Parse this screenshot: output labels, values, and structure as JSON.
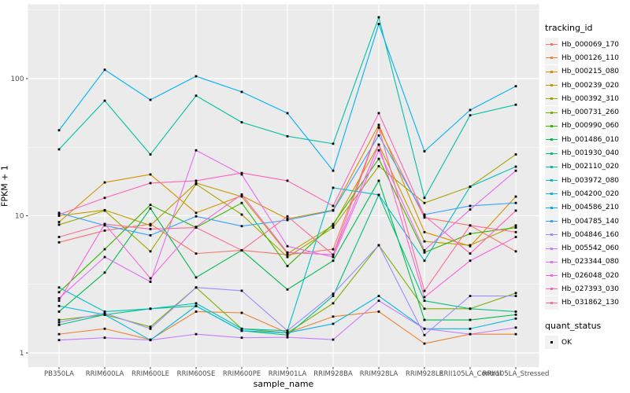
{
  "style": {
    "panel_bg": "#EBEBEB",
    "grid_color": "#FFFFFF",
    "axis_text_color": "#4D4D4D",
    "tick_mark_color": "#333333",
    "marker_color": "#000000",
    "legend_key_bg": "#F2F2F2"
  },
  "chart_data": {
    "type": "line",
    "title": "",
    "xlabel": "sample_name",
    "ylabel": "FPKM + 1",
    "y_scale": "log10",
    "y_ticks": [
      "1",
      "10",
      "100"
    ],
    "y_tick_values": [
      1,
      10,
      100
    ],
    "ylim": [
      0.8,
      330
    ],
    "grid": true,
    "legend_position": "right",
    "categories": [
      "PB350LA",
      "RRIM600LA",
      "RRIM600LE",
      "RRIM600SE",
      "RRIM600PE",
      "RRIM901LA",
      "RRIM928BA",
      "RRIM928LA",
      "RRIM928LE",
      "RRII105LA_Control",
      "RRII105LA_Stressed"
    ],
    "series": [
      {
        "name": "Hb_000069_170",
        "color": "#F8766D",
        "values": [
          6.4,
          7.8,
          8.7,
          5.3,
          5.6,
          5.2,
          5.7,
          44,
          9.7,
          8.5,
          5.5
        ]
      },
      {
        "name": "Hb_000126_110",
        "color": "#EA8331",
        "values": [
          1.37,
          1.5,
          1.25,
          2.0,
          1.96,
          1.4,
          1.84,
          2.0,
          1.17,
          1.37,
          1.37
        ]
      },
      {
        "name": "Hb_000215_080",
        "color": "#D89000",
        "values": [
          9.0,
          17.5,
          20,
          10.5,
          14,
          9.5,
          11,
          46,
          7.6,
          6.0,
          13.8
        ]
      },
      {
        "name": "Hb_000239_020",
        "color": "#C09B00",
        "values": [
          10.0,
          11,
          8.5,
          17.3,
          13.8,
          5.3,
          8.5,
          33,
          6.5,
          6.1,
          8.5
        ]
      },
      {
        "name": "Hb_000392_310",
        "color": "#A3A500",
        "values": [
          8.6,
          10.9,
          5.5,
          17.0,
          10.2,
          5.0,
          8.2,
          23,
          12.4,
          16.3,
          28
        ]
      },
      {
        "name": "Hb_000731_260",
        "color": "#7CAE00",
        "values": [
          1.74,
          1.9,
          1.55,
          3.0,
          1.5,
          1.4,
          2.3,
          6.1,
          2.1,
          2.1,
          2.73
        ]
      },
      {
        "name": "Hb_000990_060",
        "color": "#39B600",
        "values": [
          2.77,
          5.7,
          12,
          8.2,
          12.4,
          4.3,
          8.7,
          26,
          5.4,
          7.4,
          8.2
        ]
      },
      {
        "name": "Hb_001486_010",
        "color": "#00BB4E",
        "values": [
          2.0,
          3.85,
          11.3,
          3.55,
          5.6,
          2.9,
          4.7,
          18,
          1.74,
          1.74,
          1.9
        ]
      },
      {
        "name": "Hb_001930_040",
        "color": "#00BF7D",
        "values": [
          1.6,
          1.9,
          2.1,
          2.2,
          1.45,
          1.35,
          2.6,
          14.2,
          2.4,
          2.1,
          2.0
        ]
      },
      {
        "name": "Hb_002110_020",
        "color": "#00C1A3",
        "values": [
          30.5,
          69,
          28,
          75,
          48,
          38,
          33.5,
          280,
          13.5,
          54,
          64.5
        ]
      },
      {
        "name": "Hb_003972_080",
        "color": "#00BFC4",
        "values": [
          3.0,
          2.0,
          2.1,
          2.3,
          1.5,
          1.45,
          16,
          14.2,
          4.7,
          16.3,
          22.8
        ]
      },
      {
        "name": "Hb_004200_020",
        "color": "#00BAE0",
        "values": [
          2.2,
          1.9,
          1.24,
          2.2,
          1.45,
          1.4,
          1.63,
          2.6,
          1.5,
          1.5,
          1.78
        ]
      },
      {
        "name": "Hb_004586_210",
        "color": "#00B0F6",
        "values": [
          42,
          116,
          70,
          104,
          80,
          56,
          21.3,
          250,
          29.5,
          59,
          88
        ]
      },
      {
        "name": "Hb_004785_140",
        "color": "#35A2FF",
        "values": [
          10.5,
          8.5,
          7.2,
          9.9,
          8.4,
          9.3,
          10.9,
          38.5,
          10.2,
          11.8,
          12.4
        ]
      },
      {
        "name": "Hb_004846_160",
        "color": "#9590FF",
        "values": [
          1.67,
          1.95,
          1.5,
          3.0,
          2.84,
          1.45,
          2.7,
          6.1,
          1.35,
          2.6,
          2.6
        ]
      },
      {
        "name": "Hb_005542_060",
        "color": "#C77CFF",
        "values": [
          1.24,
          1.29,
          1.24,
          1.37,
          1.29,
          1.3,
          1.25,
          2.4,
          1.5,
          1.37,
          1.53
        ]
      },
      {
        "name": "Hb_023344_080",
        "color": "#E76BF3",
        "values": [
          2.5,
          5.0,
          3.3,
          30,
          20,
          6.0,
          5.0,
          30,
          5.6,
          11.1,
          21.3
        ]
      },
      {
        "name": "Hb_026048_020",
        "color": "#FA62DB",
        "values": [
          2.4,
          8.7,
          3.5,
          8.3,
          14.3,
          5.4,
          5.2,
          33,
          2.55,
          4.7,
          7.0
        ]
      },
      {
        "name": "Hb_027393_030",
        "color": "#FF62BC",
        "values": [
          10.2,
          13.5,
          17.3,
          18,
          20.5,
          18,
          11.8,
          56,
          10.0,
          5.3,
          10.9
        ]
      },
      {
        "name": "Hb_031862_130",
        "color": "#FF6A98",
        "values": [
          7.0,
          8.7,
          8.0,
          8.2,
          5.6,
          9.9,
          5.2,
          44,
          2.83,
          8.5,
          7.6
        ]
      }
    ],
    "legend": {
      "title": "tracking_id",
      "quant_title": "quant_status",
      "quant_items": [
        {
          "label": "OK",
          "marker": "square",
          "color": "#000000"
        }
      ]
    },
    "marker": {
      "shape": "square",
      "size": 2.8
    }
  }
}
